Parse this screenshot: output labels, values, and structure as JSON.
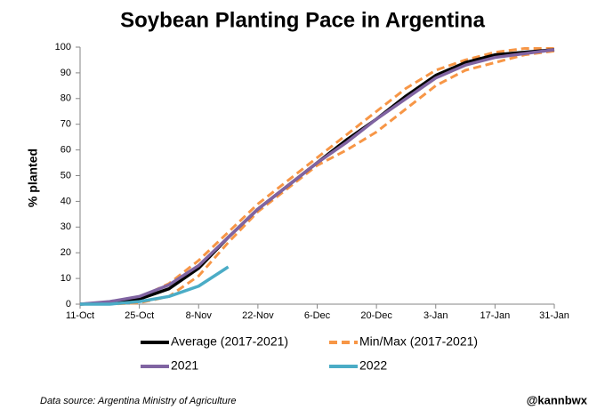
{
  "chart_data": {
    "type": "line",
    "title": "Soybean Planting Pace in Argentina",
    "y_label": "% planted",
    "source": "Data source: Argentina Ministry of Agriculture",
    "credit": "@kannbwx",
    "categories": [
      "11-Oct",
      null,
      "25-Oct",
      null,
      "8-Nov",
      null,
      "22-Nov",
      null,
      "6-Dec",
      null,
      "20-Dec",
      null,
      "3-Jan",
      null,
      "17-Jan",
      null,
      "31-Jan"
    ],
    "series": [
      {
        "name": "Min/Max (2017-2021)",
        "color": "#f79646",
        "dashed": true,
        "values": [
          0,
          0.5,
          2.5,
          8,
          17,
          28,
          39,
          48,
          57,
          66,
          75,
          84,
          91,
          95,
          98,
          99.5,
          99.5
        ]
      },
      {
        "name": "Min/Max (2017-2021)",
        "color": "#f79646",
        "dashed": true,
        "values": [
          0,
          0,
          0.5,
          3,
          11,
          24,
          36,
          45,
          54,
          60,
          67,
          76,
          85,
          91,
          94,
          97,
          98.5
        ]
      },
      {
        "name": "Average (2017-2021)",
        "color": "#000000",
        "dashed": false,
        "values": [
          0,
          0.5,
          2,
          6,
          14,
          26,
          37,
          46,
          55,
          64,
          72,
          81,
          89,
          94,
          97,
          98,
          99
        ]
      },
      {
        "name": "2021",
        "color": "#8064a2",
        "dashed": false,
        "values": [
          0,
          1,
          3,
          7.5,
          15,
          26,
          37,
          46,
          55,
          63,
          72,
          80,
          88,
          93,
          96,
          97.5,
          99
        ]
      },
      {
        "name": "2022",
        "color": "#4bacc6",
        "dashed": false,
        "values": [
          0,
          0,
          1,
          3,
          7,
          14.5,
          null,
          null,
          null,
          null,
          null,
          null,
          null,
          null,
          null,
          null,
          null
        ]
      }
    ],
    "legend_order": [
      2,
      0,
      3,
      4
    ],
    "ylim": [
      0,
      100
    ],
    "yticks": [
      0,
      10,
      20,
      30,
      40,
      50,
      60,
      70,
      80,
      90,
      100
    ]
  }
}
